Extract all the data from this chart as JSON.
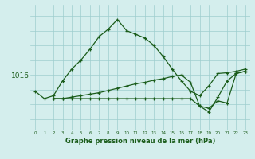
{
  "background_color": "#d4eeed",
  "grid_color": "#9ecece",
  "line_color": "#1a5c1a",
  "xlabel": "Graphe pression niveau de la mer (hPa)",
  "ytick_label": "1016",
  "ytick_value": 1016,
  "xlim": [
    -0.5,
    23.5
  ],
  "ylim": [
    1008.5,
    1025.5
  ],
  "xticks": [
    0,
    1,
    2,
    3,
    4,
    5,
    6,
    7,
    8,
    9,
    10,
    11,
    12,
    13,
    14,
    15,
    16,
    17,
    18,
    19,
    20,
    21,
    22,
    23
  ],
  "hgrid_vals": [
    1010,
    1012,
    1014,
    1016,
    1018,
    1020,
    1022,
    1024
  ],
  "line1_x": [
    0,
    1,
    2,
    3,
    4,
    5,
    6,
    7,
    8,
    9,
    10,
    11,
    12,
    13,
    14,
    15,
    16,
    17,
    18,
    19,
    20,
    21,
    22,
    23
  ],
  "line1_y": [
    1013.8,
    1012.8,
    1013.2,
    1015.2,
    1016.8,
    1018.0,
    1019.5,
    1021.2,
    1022.2,
    1023.5,
    1022.0,
    1021.5,
    1021.0,
    1020.0,
    1018.5,
    1016.8,
    1015.2,
    1013.8,
    1013.2,
    1014.5,
    1016.2,
    1016.3,
    1016.5,
    1016.8
  ],
  "line2_x": [
    2,
    3,
    4,
    5,
    6,
    7,
    8,
    9,
    10,
    11,
    12,
    13,
    14,
    15,
    16,
    17,
    18,
    19,
    20,
    21,
    22,
    23
  ],
  "line2_y": [
    1012.8,
    1012.8,
    1012.8,
    1012.8,
    1012.8,
    1012.8,
    1012.8,
    1012.8,
    1012.8,
    1012.8,
    1012.8,
    1012.8,
    1012.8,
    1012.8,
    1012.8,
    1012.8,
    1011.8,
    1011.5,
    1012.5,
    1012.2,
    1016.2,
    1016.5
  ],
  "line3_x": [
    2,
    3,
    4,
    5,
    6,
    7,
    8,
    9,
    10,
    11,
    12,
    13,
    14,
    15,
    16,
    17,
    18,
    19,
    20,
    21,
    22,
    23
  ],
  "line3_y": [
    1012.8,
    1012.8,
    1013.0,
    1013.2,
    1013.4,
    1013.6,
    1013.9,
    1014.2,
    1014.5,
    1014.8,
    1015.0,
    1015.3,
    1015.5,
    1015.8,
    1016.0,
    1015.0,
    1011.8,
    1011.0,
    1013.0,
    1015.2,
    1016.2,
    1016.5
  ]
}
